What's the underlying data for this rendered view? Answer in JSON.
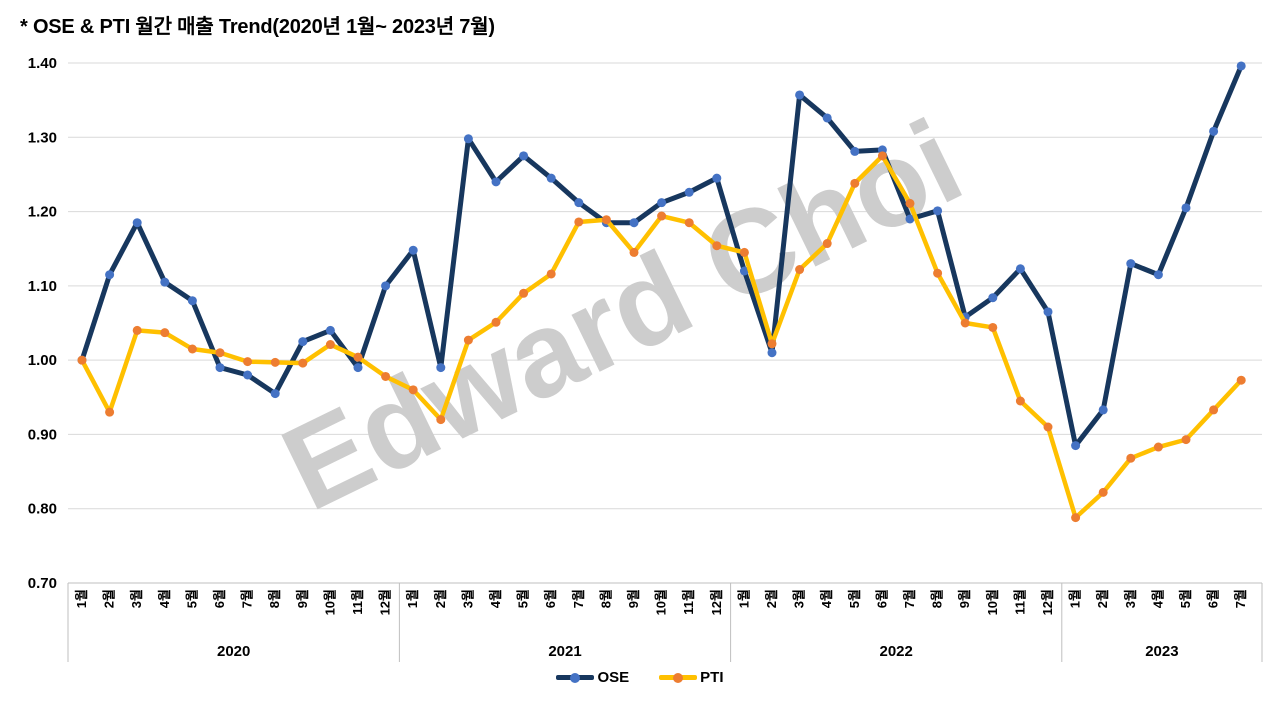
{
  "title": "* OSE & PTI 월간 매출 Trend(2020년 1월~ 2023년 7월)",
  "watermark": "Edward Choi",
  "colors": {
    "ose_line": "#17375E",
    "ose_marker": "#4472C4",
    "pti_line": "#FFC000",
    "pti_marker": "#ED7D31",
    "gridline": "#D9D9D9",
    "axis": "#BFBFBF",
    "watermark": "#CDCDCD",
    "text": "#000000",
    "background": "#FFFFFF"
  },
  "legend": {
    "position": "bottom",
    "items": [
      {
        "label": "OSE"
      },
      {
        "label": "PTI"
      }
    ]
  },
  "chart_data": {
    "type": "line",
    "title": "* OSE & PTI 월간 매출 Trend(2020년 1월~ 2023년 7월)",
    "grid": true,
    "legend_position": "bottom",
    "y_axis": {
      "min": 0.7,
      "max": 1.4,
      "step": 0.1,
      "ticks": [
        "1.40",
        "1.30",
        "1.20",
        "1.10",
        "1.00",
        "0.90",
        "0.80",
        "0.70"
      ]
    },
    "x_groups": [
      {
        "year": "2020",
        "months": [
          "1월",
          "2월",
          "3월",
          "4월",
          "5월",
          "6월",
          "7월",
          "8월",
          "9월",
          "10월",
          "11월",
          "12월"
        ]
      },
      {
        "year": "2021",
        "months": [
          "1월",
          "2월",
          "3월",
          "4월",
          "5월",
          "6월",
          "7월",
          "8월",
          "9월",
          "10월",
          "11월",
          "12월"
        ]
      },
      {
        "year": "2022",
        "months": [
          "1월",
          "2월",
          "3월",
          "4월",
          "5월",
          "6월",
          "7월",
          "8월",
          "9월",
          "10월",
          "11월",
          "12월"
        ]
      },
      {
        "year": "2023",
        "months": [
          "1월",
          "2월",
          "3월",
          "4월",
          "5월",
          "6월",
          "7월"
        ]
      }
    ],
    "series": [
      {
        "name": "OSE",
        "line_color": "#17375E",
        "marker_color": "#4472C4",
        "values": [
          1.0,
          1.115,
          1.185,
          1.105,
          1.08,
          0.99,
          0.98,
          0.955,
          1.025,
          1.04,
          0.99,
          1.1,
          1.148,
          0.99,
          1.298,
          1.24,
          1.275,
          1.245,
          1.212,
          1.185,
          1.185,
          1.212,
          1.226,
          1.245,
          1.12,
          1.01,
          1.357,
          1.326,
          1.281,
          1.283,
          1.19,
          1.201,
          1.058,
          1.084,
          1.123,
          1.065,
          0.885,
          0.933,
          1.13,
          1.115,
          1.205,
          1.308,
          1.396
        ]
      },
      {
        "name": "PTI",
        "line_color": "#FFC000",
        "marker_color": "#ED7D31",
        "values": [
          1.0,
          0.93,
          1.04,
          1.037,
          1.015,
          1.01,
          0.998,
          0.997,
          0.996,
          1.021,
          1.004,
          0.978,
          0.96,
          0.92,
          1.027,
          1.051,
          1.09,
          1.116,
          1.186,
          1.189,
          1.145,
          1.194,
          1.185,
          1.154,
          1.145,
          1.022,
          1.122,
          1.157,
          1.238,
          1.275,
          1.211,
          1.117,
          1.05,
          1.044,
          0.945,
          0.91,
          0.788,
          0.822,
          0.868,
          0.883,
          0.893,
          0.933,
          0.973
        ]
      }
    ]
  }
}
